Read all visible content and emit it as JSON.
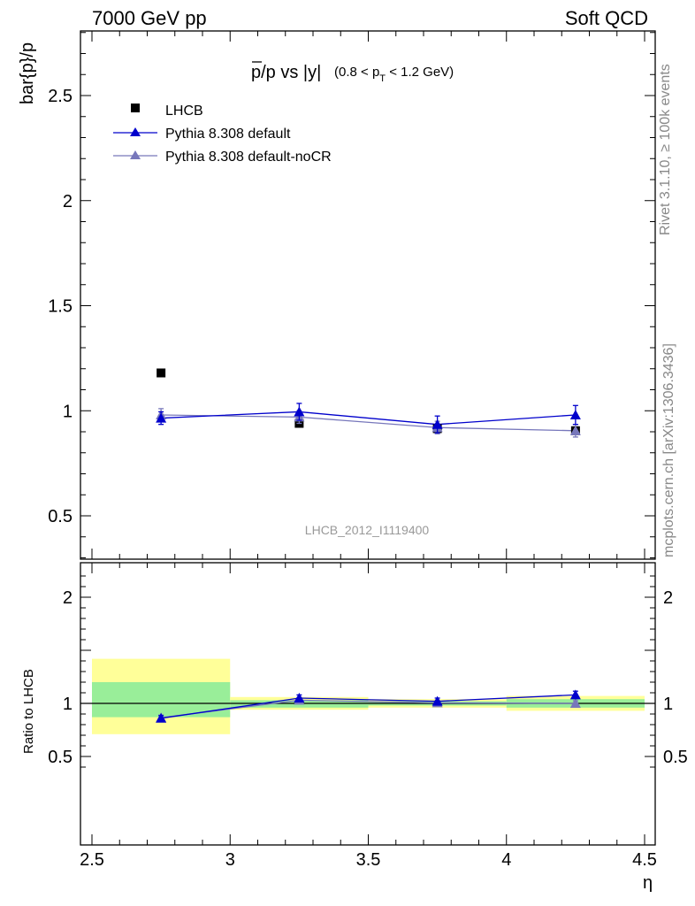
{
  "header": {
    "left": "7000 GeV pp",
    "right": "Soft QCD"
  },
  "side_labels": {
    "rivet": "Rivet 3.1.10, ≥ 100k events",
    "mcplots": "mcplots.cern.ch [arXiv:1306.3436]"
  },
  "colors": {
    "data": "#000000",
    "default": "#0000cc",
    "noCR": "#7777bb",
    "band_inner": "#99ee99",
    "band_outer": "#ffff99",
    "watermark": "#999999"
  },
  "chart_data": [
    {
      "type": "scatter",
      "title": "p̅/p vs |y|",
      "title_main": "p/p vs |y|",
      "title_sub_prefix": "(0.8 < p",
      "title_sub_index": "T",
      "title_sub_suffix": " < 1.2 GeV)",
      "ylabel": "bar{p}/p",
      "xlabel": "η",
      "xlim": [
        2.5,
        4.5
      ],
      "ylim": [
        0.3,
        2.82
      ],
      "grid": false,
      "legend_position": "top-left",
      "yticks": [
        0.5,
        1,
        1.5,
        2,
        2.5
      ],
      "ytick_labels": [
        "0.5",
        "1",
        "1.5",
        "2",
        "2.5"
      ],
      "watermark": "LHCB_2012_I1119400",
      "series": [
        {
          "name": "LHCB",
          "marker": "square",
          "x": [
            2.75,
            3.25,
            3.75,
            4.25
          ],
          "y": [
            1.18,
            0.94,
            0.915,
            0.905
          ],
          "yerr": [
            0,
            0.01,
            0.01,
            0.015
          ]
        },
        {
          "name": "Pythia 8.308 default",
          "marker": "triangle",
          "x": [
            2.75,
            3.25,
            3.75,
            4.25
          ],
          "y": [
            0.965,
            0.995,
            0.935,
            0.98
          ],
          "yerr": [
            0.03,
            0.04,
            0.04,
            0.045
          ]
        },
        {
          "name": "Pythia 8.308 default-noCR",
          "marker": "triangle",
          "x": [
            2.75,
            3.25,
            3.75,
            4.25
          ],
          "y": [
            0.98,
            0.97,
            0.92,
            0.905
          ],
          "yerr": [
            0.03,
            0.03,
            0.03,
            0.03
          ]
        }
      ]
    },
    {
      "type": "line",
      "ylabel": "Ratio to LHCB",
      "xlabel": "η",
      "xlim": [
        2.5,
        4.5
      ],
      "ylim": [
        0.35,
        2.27
      ],
      "reference_line": 1,
      "xticks": [
        2.5,
        3,
        3.5,
        4,
        4.5
      ],
      "xtick_labels": [
        "2.5",
        "3",
        "3.5",
        "4",
        "4.5"
      ],
      "yticks": [
        0.5,
        1,
        2
      ],
      "ytick_labels": [
        "0.5",
        "1",
        "2"
      ],
      "bands": [
        {
          "x0": 2.5,
          "x1": 3.0,
          "outer": [
            0.71,
            1.42
          ],
          "inner": [
            0.87,
            1.2
          ]
        },
        {
          "x0": 3.0,
          "x1": 3.5,
          "outer": [
            0.94,
            1.06
          ],
          "inner": [
            0.96,
            1.03
          ]
        },
        {
          "x0": 3.5,
          "x1": 4.0,
          "outer": [
            0.96,
            1.04
          ],
          "inner": [
            0.98,
            1.02
          ]
        },
        {
          "x0": 4.0,
          "x1": 4.5,
          "outer": [
            0.93,
            1.07
          ],
          "inner": [
            0.96,
            1.04
          ]
        }
      ],
      "series": [
        {
          "name": "Pythia 8.308 default",
          "x": [
            2.75,
            3.25,
            3.75,
            4.25
          ],
          "y": [
            0.86,
            1.05,
            1.02,
            1.08
          ],
          "yerr": [
            0.025,
            0.03,
            0.03,
            0.035
          ]
        },
        {
          "name": "Pythia 8.308 default-noCR",
          "x": [
            2.75,
            3.25,
            3.75,
            4.25
          ],
          "y": [
            0.865,
            1.03,
            1.005,
            1.0
          ],
          "yerr": [
            0.025,
            0.025,
            0.025,
            0.025
          ]
        }
      ]
    }
  ]
}
